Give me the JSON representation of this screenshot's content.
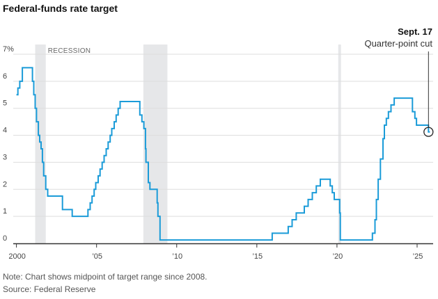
{
  "title": "Federal-funds rate target",
  "annotation": {
    "date": "Sept. 17",
    "text": "Quarter-point cut",
    "x": 2025.71,
    "y": 4.125
  },
  "note": "Note: Chart shows midpoint of target range since 2008.",
  "source": "Source: Federal Reserve",
  "colors": {
    "line": "#1a9bd8",
    "recession": "#e6e7e9",
    "grid": "#dddddd",
    "axis": "#333333"
  },
  "chart_data": {
    "type": "line",
    "title": "Federal-funds rate target",
    "xlabel": "",
    "ylabel": "",
    "xlim": [
      1999.8,
      2026.0
    ],
    "ylim": [
      0,
      7
    ],
    "grid": true,
    "y_ticks": [
      0,
      1,
      2,
      3,
      4,
      5,
      6,
      7
    ],
    "y_tick_labels": [
      "0",
      "1",
      "2",
      "3",
      "4",
      "5",
      "6",
      "7%"
    ],
    "x_ticks": [
      2000,
      2005,
      2010,
      2015,
      2020,
      2025
    ],
    "x_tick_labels": [
      "2000",
      "’05",
      "’10",
      "’15",
      "’20",
      "’25"
    ],
    "recession_label": "RECESSION",
    "recessions": [
      [
        2001.17,
        2001.83
      ],
      [
        2007.92,
        2009.42
      ],
      [
        2020.08,
        2020.25
      ]
    ],
    "series": [
      {
        "values": [
          [
            2000.0,
            5.5
          ],
          [
            2000.09,
            5.75
          ],
          [
            2000.21,
            6.0
          ],
          [
            2000.37,
            6.5
          ],
          [
            2001.0,
            6.0
          ],
          [
            2001.08,
            5.5
          ],
          [
            2001.17,
            5.0
          ],
          [
            2001.25,
            4.5
          ],
          [
            2001.37,
            4.0
          ],
          [
            2001.45,
            3.75
          ],
          [
            2001.54,
            3.5
          ],
          [
            2001.62,
            3.0
          ],
          [
            2001.7,
            2.5
          ],
          [
            2001.83,
            2.0
          ],
          [
            2001.95,
            1.75
          ],
          [
            2002.87,
            1.25
          ],
          [
            2003.48,
            1.0
          ],
          [
            2004.46,
            1.25
          ],
          [
            2004.6,
            1.5
          ],
          [
            2004.72,
            1.75
          ],
          [
            2004.85,
            2.0
          ],
          [
            2004.95,
            2.25
          ],
          [
            2005.1,
            2.5
          ],
          [
            2005.22,
            2.75
          ],
          [
            2005.35,
            3.0
          ],
          [
            2005.47,
            3.25
          ],
          [
            2005.6,
            3.5
          ],
          [
            2005.72,
            3.75
          ],
          [
            2005.85,
            4.0
          ],
          [
            2005.95,
            4.25
          ],
          [
            2006.1,
            4.5
          ],
          [
            2006.22,
            4.75
          ],
          [
            2006.35,
            5.0
          ],
          [
            2006.47,
            5.25
          ],
          [
            2007.7,
            4.75
          ],
          [
            2007.83,
            4.5
          ],
          [
            2007.95,
            4.25
          ],
          [
            2008.05,
            3.5
          ],
          [
            2008.08,
            3.0
          ],
          [
            2008.23,
            2.25
          ],
          [
            2008.33,
            2.0
          ],
          [
            2008.78,
            1.5
          ],
          [
            2008.83,
            1.0
          ],
          [
            2008.96,
            0.125
          ],
          [
            2015.96,
            0.375
          ],
          [
            2016.96,
            0.625
          ],
          [
            2017.2,
            0.875
          ],
          [
            2017.46,
            1.125
          ],
          [
            2017.96,
            1.375
          ],
          [
            2018.2,
            1.625
          ],
          [
            2018.46,
            1.875
          ],
          [
            2018.71,
            2.125
          ],
          [
            2018.96,
            2.375
          ],
          [
            2019.58,
            2.125
          ],
          [
            2019.71,
            1.875
          ],
          [
            2019.83,
            1.625
          ],
          [
            2020.17,
            1.125
          ],
          [
            2020.21,
            0.125
          ],
          [
            2022.21,
            0.375
          ],
          [
            2022.37,
            0.875
          ],
          [
            2022.46,
            1.625
          ],
          [
            2022.57,
            2.375
          ],
          [
            2022.71,
            3.125
          ],
          [
            2022.87,
            3.875
          ],
          [
            2022.96,
            4.375
          ],
          [
            2023.08,
            4.625
          ],
          [
            2023.21,
            4.875
          ],
          [
            2023.37,
            5.125
          ],
          [
            2023.57,
            5.375
          ],
          [
            2024.71,
            4.875
          ],
          [
            2024.86,
            4.625
          ],
          [
            2024.96,
            4.375
          ],
          [
            2025.71,
            4.125
          ],
          [
            2025.8,
            4.125
          ]
        ]
      }
    ]
  }
}
